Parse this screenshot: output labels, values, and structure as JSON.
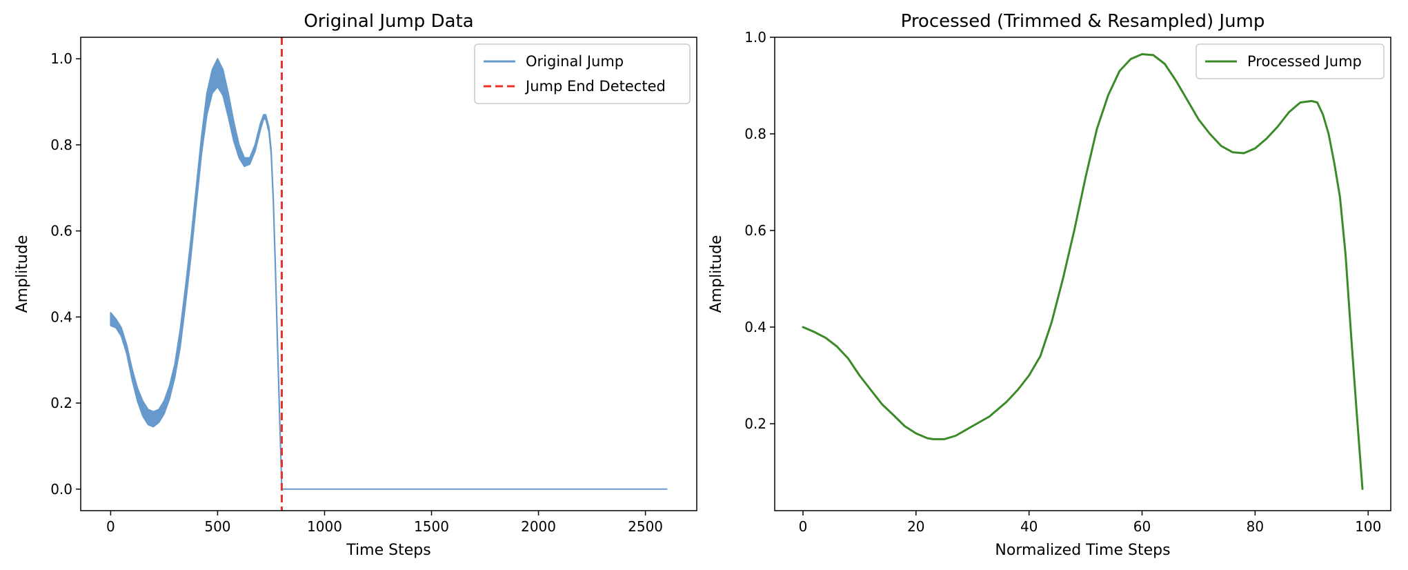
{
  "chart_data": [
    {
      "type": "line",
      "title": "Original Jump Data",
      "xlabel": "Time Steps",
      "ylabel": "Amplitude",
      "xlim": [
        -140,
        2740
      ],
      "ylim": [
        -0.05,
        1.05
      ],
      "xticks": [
        0,
        500,
        1000,
        1500,
        2000,
        2500
      ],
      "yticks": [
        0.0,
        0.2,
        0.4,
        0.6,
        0.8,
        1.0
      ],
      "xtick_labels": [
        "0",
        "500",
        "1000",
        "1500",
        "2000",
        "2500"
      ],
      "ytick_labels": [
        "0.0",
        "0.2",
        "0.4",
        "0.6",
        "0.8",
        "1.0"
      ],
      "grid": false,
      "legend_position": "upper right",
      "series": [
        {
          "name": "Original Jump",
          "color": "#6699cc",
          "style": "solid",
          "band": true,
          "x": [
            0,
            25,
            50,
            75,
            100,
            125,
            150,
            175,
            200,
            225,
            250,
            275,
            300,
            325,
            350,
            375,
            400,
            425,
            450,
            475,
            500,
            525,
            550,
            575,
            600,
            625,
            650,
            675,
            700,
            715,
            725,
            740,
            750,
            760,
            770,
            780,
            790,
            800,
            2600
          ],
          "upper": [
            0.41,
            0.395,
            0.375,
            0.335,
            0.28,
            0.235,
            0.205,
            0.185,
            0.18,
            0.185,
            0.205,
            0.24,
            0.29,
            0.37,
            0.47,
            0.58,
            0.7,
            0.82,
            0.92,
            0.975,
            1.0,
            0.975,
            0.92,
            0.855,
            0.8,
            0.77,
            0.77,
            0.8,
            0.85,
            0.87,
            0.87,
            0.84,
            0.79,
            0.68,
            0.52,
            0.34,
            0.17,
            0.0,
            0.0
          ],
          "lower": [
            0.38,
            0.375,
            0.355,
            0.315,
            0.255,
            0.205,
            0.17,
            0.15,
            0.145,
            0.155,
            0.175,
            0.21,
            0.26,
            0.33,
            0.43,
            0.54,
            0.66,
            0.78,
            0.87,
            0.92,
            0.935,
            0.915,
            0.865,
            0.81,
            0.77,
            0.75,
            0.755,
            0.785,
            0.835,
            0.86,
            0.86,
            0.83,
            0.78,
            0.67,
            0.51,
            0.33,
            0.16,
            0.0,
            0.0
          ]
        },
        {
          "name": "Jump End Detected",
          "color": "#e8312a",
          "style": "dashed",
          "vline_x": 800
        }
      ]
    },
    {
      "type": "line",
      "title": "Processed (Trimmed & Resampled) Jump",
      "xlabel": "Normalized Time Steps",
      "ylabel": "Amplitude",
      "xlim": [
        -5,
        104
      ],
      "ylim": [
        0.02,
        1.0
      ],
      "xticks": [
        0,
        20,
        40,
        60,
        80,
        100
      ],
      "yticks": [
        0.2,
        0.4,
        0.6,
        0.8,
        1.0
      ],
      "xtick_labels": [
        "0",
        "20",
        "40",
        "60",
        "80",
        "100"
      ],
      "ytick_labels": [
        "0.2",
        "0.4",
        "0.6",
        "0.8",
        "1.0"
      ],
      "grid": false,
      "legend_position": "upper right",
      "series": [
        {
          "name": "Processed Jump",
          "color": "#3a8a28",
          "style": "solid",
          "x": [
            0,
            2,
            4,
            6,
            8,
            10,
            12,
            14,
            16,
            18,
            20,
            22,
            23,
            25,
            27,
            30,
            33,
            36,
            38,
            40,
            42,
            44,
            46,
            48,
            50,
            52,
            54,
            56,
            58,
            60,
            62,
            64,
            66,
            68,
            70,
            72,
            74,
            76,
            78,
            80,
            82,
            84,
            86,
            88,
            90,
            91,
            92,
            93,
            94,
            95,
            96,
            97,
            98,
            99
          ],
          "values": [
            0.4,
            0.39,
            0.378,
            0.36,
            0.335,
            0.3,
            0.27,
            0.24,
            0.218,
            0.195,
            0.18,
            0.17,
            0.168,
            0.168,
            0.175,
            0.195,
            0.215,
            0.245,
            0.27,
            0.3,
            0.34,
            0.41,
            0.5,
            0.6,
            0.71,
            0.81,
            0.88,
            0.93,
            0.955,
            0.965,
            0.963,
            0.945,
            0.91,
            0.87,
            0.83,
            0.8,
            0.775,
            0.762,
            0.76,
            0.77,
            0.79,
            0.815,
            0.845,
            0.865,
            0.868,
            0.865,
            0.84,
            0.8,
            0.74,
            0.67,
            0.55,
            0.38,
            0.22,
            0.065
          ]
        }
      ]
    }
  ]
}
